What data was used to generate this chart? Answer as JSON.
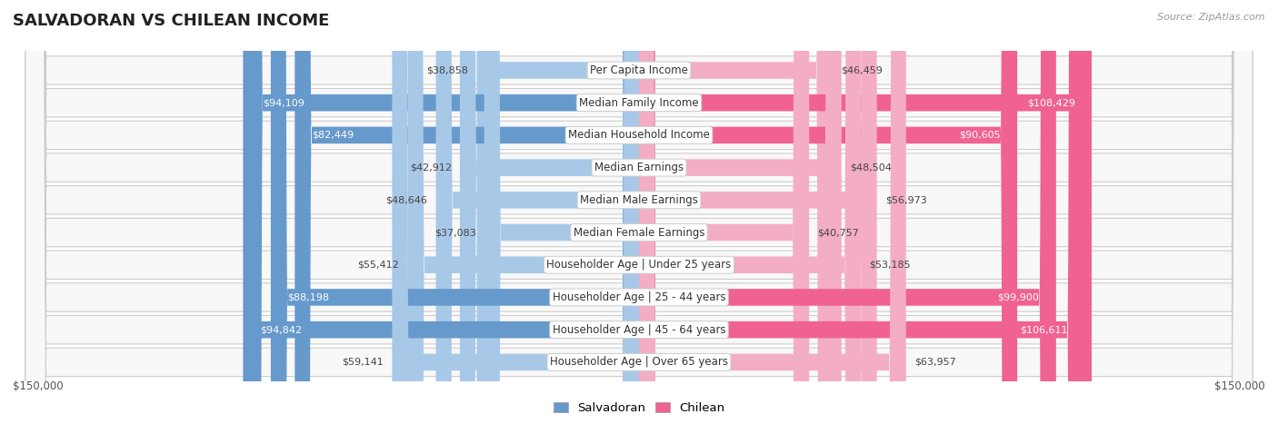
{
  "title": "SALVADORAN VS CHILEAN INCOME",
  "source": "Source: ZipAtlas.com",
  "categories": [
    "Per Capita Income",
    "Median Family Income",
    "Median Household Income",
    "Median Earnings",
    "Median Male Earnings",
    "Median Female Earnings",
    "Householder Age | Under 25 years",
    "Householder Age | 25 - 44 years",
    "Householder Age | 45 - 64 years",
    "Householder Age | Over 65 years"
  ],
  "salvadoran_values": [
    38858,
    94109,
    82449,
    42912,
    48646,
    37083,
    55412,
    88198,
    94842,
    59141
  ],
  "chilean_values": [
    46459,
    108429,
    90605,
    48504,
    56973,
    40757,
    53185,
    99900,
    106611,
    63957
  ],
  "salvadoran_labels": [
    "$38,858",
    "$94,109",
    "$82,449",
    "$42,912",
    "$48,646",
    "$37,083",
    "$55,412",
    "$88,198",
    "$94,842",
    "$59,141"
  ],
  "chilean_labels": [
    "$46,459",
    "$108,429",
    "$90,605",
    "$48,504",
    "$56,973",
    "$40,757",
    "$53,185",
    "$99,900",
    "$106,611",
    "$63,957"
  ],
  "salvadoran_color_light": "#a8c8e8",
  "salvadoran_color_dark": "#6699cc",
  "chilean_color_light": "#f4aec4",
  "chilean_color_dark": "#f06292",
  "white_text_threshold": 70000,
  "max_value": 150000,
  "title_fontsize": 13,
  "label_fontsize": 8.5,
  "value_fontsize": 8,
  "legend_fontsize": 9.5
}
